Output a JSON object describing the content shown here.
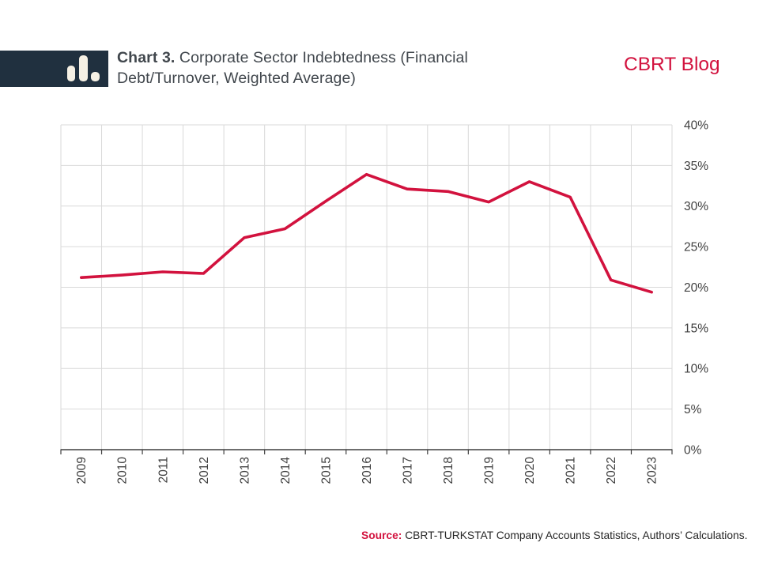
{
  "header": {
    "title_prefix": "Chart 3.",
    "title_rest": " Corporate Sector Indebtedness (Financial Debt/Turnover, Weighted Average)",
    "blog_name": "CBRT Blog"
  },
  "footer": {
    "source_label": "Source:",
    "source_text": " CBRT-TURKSTAT Company Accounts Statistics, Authors’ Calculations."
  },
  "colors": {
    "accent_red": "#d2123e",
    "navy": "#20303f",
    "icon_cream": "#f5f0e4",
    "grid": "#d9d9d9",
    "axis": "#3f3f3f",
    "title_gray": "#41474d"
  },
  "chart_data": {
    "type": "line",
    "title": "Corporate Sector Indebtedness (Financial Debt/Turnover, Weighted Average)",
    "categories": [
      "2009",
      "2010",
      "2011",
      "2012",
      "2013",
      "2014",
      "2015",
      "2016",
      "2017",
      "2018",
      "2019",
      "2020",
      "2021",
      "2022",
      "2023"
    ],
    "series": [
      {
        "name": "Financial Debt/Turnover (Weighted Average)",
        "values": [
          21.2,
          21.5,
          21.9,
          21.7,
          26.1,
          27.2,
          30.6,
          33.9,
          32.1,
          31.8,
          30.5,
          33.0,
          31.1,
          20.9,
          19.4
        ]
      }
    ],
    "ylim": [
      0,
      40
    ],
    "ytick_step": 5,
    "ytick_suffix": "%",
    "yaxis_side": "right",
    "xlabel_rotation": -90,
    "grid": true,
    "legend": "none",
    "line_color": "#d2123e"
  }
}
